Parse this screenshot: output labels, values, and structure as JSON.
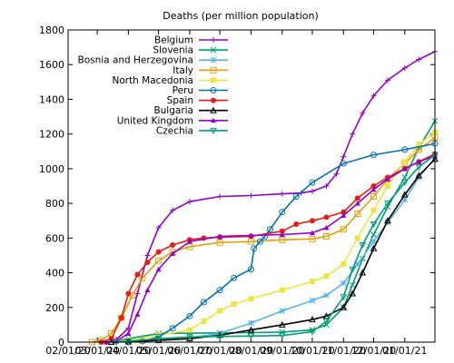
{
  "chart_data": {
    "type": "line",
    "title": "Deaths (per million population)",
    "xlabel": "",
    "ylabel": "",
    "x_ticks": [
      "02/01/20",
      "03/01/20",
      "04/01/20",
      "05/01/20",
      "06/01/20",
      "07/01/20",
      "08/01/20",
      "09/01/20",
      "10/01/20",
      "11/01/20",
      "12/01/20",
      "01/01/21"
    ],
    "xlim": [
      "02/01/20",
      "01/31/21"
    ],
    "ylim": [
      0,
      1800
    ],
    "y_ticks": [
      0,
      200,
      400,
      600,
      800,
      1000,
      1200,
      1400,
      1600,
      1800
    ],
    "grid": false,
    "legend_position": "top-left",
    "series": [
      {
        "name": "Belgium",
        "color": "#9400d3",
        "marker": "plus",
        "x": [
          "03/10/20",
          "03/20/20",
          "04/01/20",
          "04/10/20",
          "04/20/20",
          "05/01/20",
          "05/15/20",
          "06/01/20",
          "07/01/20",
          "08/01/20",
          "09/01/20",
          "09/20/20",
          "10/01/20",
          "10/15/20",
          "10/25/20",
          "11/01/20",
          "11/10/20",
          "11/20/20",
          "12/01/20",
          "12/15/20",
          "01/01/21",
          "01/15/21",
          "01/31/21"
        ],
        "y": [
          0,
          15,
          80,
          280,
          500,
          660,
          760,
          810,
          840,
          845,
          855,
          860,
          870,
          900,
          970,
          1070,
          1200,
          1320,
          1420,
          1510,
          1580,
          1630,
          1675
        ]
      },
      {
        "name": "Slovenia",
        "color": "#009e73",
        "marker": "x",
        "x": [
          "03/15/20",
          "04/01/20",
          "05/01/20",
          "06/01/20",
          "07/01/20",
          "08/01/20",
          "09/01/20",
          "10/01/20",
          "10/15/20",
          "11/01/20",
          "11/10/20",
          "11/20/20",
          "12/01/20",
          "12/15/20",
          "01/01/21",
          "01/15/21",
          "01/31/21"
        ],
        "y": [
          0,
          20,
          50,
          52,
          53,
          55,
          58,
          70,
          100,
          200,
          330,
          480,
          620,
          780,
          950,
          1120,
          1275
        ]
      },
      {
        "name": "Bosnia and Herzegovina",
        "color": "#56b4e9",
        "marker": "star",
        "x": [
          "03/15/20",
          "04/01/20",
          "05/01/20",
          "06/01/20",
          "07/01/20",
          "08/01/20",
          "09/01/20",
          "10/01/20",
          "10/15/20",
          "11/01/20",
          "11/15/20",
          "12/01/20",
          "12/15/20",
          "01/01/21",
          "01/15/21",
          "01/31/21"
        ],
        "y": [
          0,
          5,
          15,
          25,
          50,
          110,
          180,
          240,
          270,
          340,
          450,
          580,
          690,
          820,
          950,
          1060
        ]
      },
      {
        "name": "Italy",
        "color": "#e69f00",
        "marker": "square",
        "x": [
          "02/25/20",
          "03/05/20",
          "03/15/20",
          "03/25/20",
          "04/05/20",
          "04/15/20",
          "05/01/20",
          "05/15/20",
          "06/01/20",
          "07/01/20",
          "08/01/20",
          "09/01/20",
          "10/01/20",
          "10/15/20",
          "11/01/20",
          "11/15/20",
          "12/01/20",
          "12/15/20",
          "01/01/21",
          "01/15/21",
          "01/31/21"
        ],
        "y": [
          0,
          10,
          50,
          140,
          270,
          370,
          470,
          520,
          550,
          575,
          580,
          590,
          595,
          610,
          650,
          740,
          840,
          940,
          1030,
          1110,
          1180
        ]
      },
      {
        "name": "North Macedonia",
        "color": "#f0e442",
        "marker": "square-filled",
        "x": [
          "03/15/20",
          "04/01/20",
          "05/01/20",
          "06/01/20",
          "06/15/20",
          "07/01/20",
          "07/15/20",
          "08/01/20",
          "09/01/20",
          "10/01/20",
          "10/15/20",
          "11/01/20",
          "11/15/20",
          "12/01/20",
          "12/15/20",
          "01/01/21",
          "01/15/21",
          "01/31/21"
        ],
        "y": [
          0,
          10,
          40,
          70,
          120,
          180,
          220,
          250,
          300,
          350,
          380,
          450,
          600,
          760,
          900,
          1040,
          1140,
          1210
        ]
      },
      {
        "name": "Peru",
        "color": "#0072b2",
        "marker": "circle",
        "x": [
          "04/01/20",
          "04/15/20",
          "05/01/20",
          "05/15/20",
          "06/01/20",
          "06/15/20",
          "07/01/20",
          "07/15/20",
          "08/01/20",
          "08/04/20",
          "08/10/20",
          "08/15/20",
          "08/20/20",
          "09/01/20",
          "09/15/20",
          "10/01/20",
          "11/01/20",
          "12/01/20",
          "01/01/21",
          "01/31/21"
        ],
        "y": [
          0,
          5,
          30,
          80,
          150,
          230,
          300,
          370,
          420,
          540,
          580,
          610,
          650,
          750,
          840,
          920,
          1030,
          1080,
          1110,
          1145
        ]
      },
      {
        "name": "Spain",
        "color": "#e51e10",
        "marker": "circle-filled",
        "x": [
          "03/05/20",
          "03/15/20",
          "03/25/20",
          "04/01/20",
          "04/10/20",
          "04/20/20",
          "05/01/20",
          "05/15/20",
          "06/01/20",
          "06/15/20",
          "07/01/20",
          "08/01/20",
          "09/01/20",
          "09/15/20",
          "10/01/20",
          "10/15/20",
          "11/01/20",
          "11/15/20",
          "12/01/20",
          "12/15/20",
          "01/01/21",
          "01/15/21",
          "01/31/21"
        ],
        "y": [
          0,
          20,
          140,
          280,
          390,
          460,
          520,
          560,
          590,
          600,
          605,
          610,
          640,
          680,
          700,
          720,
          750,
          830,
          900,
          950,
          1000,
          1040,
          1085
        ]
      },
      {
        "name": "Bulgaria",
        "color": "#000000",
        "marker": "triangle",
        "x": [
          "03/15/20",
          "04/01/20",
          "05/01/20",
          "06/01/20",
          "07/01/20",
          "08/01/20",
          "09/01/20",
          "10/01/20",
          "10/15/20",
          "11/01/20",
          "11/10/20",
          "11/20/20",
          "12/01/20",
          "12/15/20",
          "01/01/21",
          "01/15/21",
          "01/31/21"
        ],
        "y": [
          0,
          3,
          10,
          20,
          40,
          70,
          100,
          130,
          150,
          200,
          280,
          400,
          540,
          700,
          850,
          960,
          1055
        ]
      },
      {
        "name": "United Kingdom",
        "color": "#9400d3",
        "marker": "triangle-filled",
        "x": [
          "03/10/20",
          "03/20/20",
          "04/01/20",
          "04/10/20",
          "04/20/20",
          "05/01/20",
          "05/15/20",
          "06/01/20",
          "07/01/20",
          "08/01/20",
          "09/01/20",
          "10/01/20",
          "10/15/20",
          "11/01/20",
          "11/15/20",
          "12/01/20",
          "12/15/20",
          "01/01/21",
          "01/15/21",
          "01/31/21"
        ],
        "y": [
          0,
          5,
          50,
          160,
          300,
          420,
          510,
          580,
          610,
          615,
          620,
          630,
          660,
          730,
          800,
          880,
          940,
          1000,
          1040,
          1075
        ]
      },
      {
        "name": "Czechia",
        "color": "#009e73",
        "marker": "triangle-down",
        "x": [
          "03/20/20",
          "04/01/20",
          "05/01/20",
          "06/01/20",
          "07/01/20",
          "08/01/20",
          "09/01/20",
          "10/01/20",
          "10/15/20",
          "11/01/20",
          "11/10/20",
          "11/20/20",
          "12/01/20",
          "12/15/20",
          "01/01/21",
          "01/15/21",
          "01/31/21"
        ],
        "y": [
          0,
          5,
          20,
          30,
          33,
          35,
          38,
          60,
          120,
          260,
          420,
          560,
          680,
          800,
          920,
          1010,
          1080
        ]
      }
    ]
  }
}
